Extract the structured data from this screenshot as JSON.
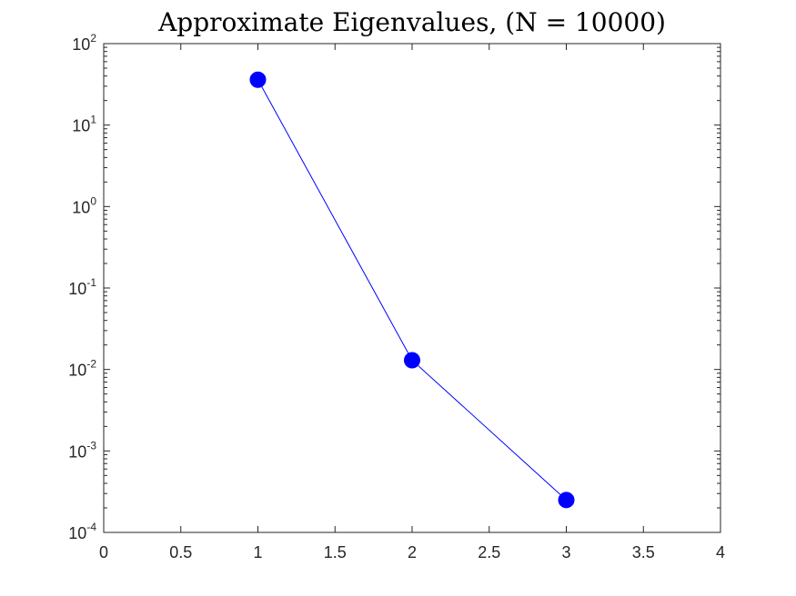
{
  "chart_data": {
    "type": "line",
    "title": "Approximate Eigenvalues, (N = 10000)",
    "xlabel": "",
    "ylabel": "",
    "x": [
      1,
      2,
      3
    ],
    "series": [
      {
        "values": [
          36,
          0.013,
          0.00025
        ],
        "color": "#0000ff",
        "marker": "filled-circle"
      }
    ],
    "xlim": [
      0,
      4
    ],
    "ylim": [
      0.0001,
      100
    ],
    "yscale": "log",
    "grid": false,
    "legend": "none",
    "x_ticks": [
      {
        "value": 0,
        "label": "0"
      },
      {
        "value": 0.5,
        "label": "0.5"
      },
      {
        "value": 1,
        "label": "1"
      },
      {
        "value": 1.5,
        "label": "1.5"
      },
      {
        "value": 2,
        "label": "2"
      },
      {
        "value": 2.5,
        "label": "2.5"
      },
      {
        "value": 3,
        "label": "3"
      },
      {
        "value": 3.5,
        "label": "3.5"
      },
      {
        "value": 4,
        "label": "4"
      }
    ],
    "y_ticks": [
      {
        "value": 0.0001,
        "base": "10",
        "exp": "-4"
      },
      {
        "value": 0.001,
        "base": "10",
        "exp": "-3"
      },
      {
        "value": 0.01,
        "base": "10",
        "exp": "-2"
      },
      {
        "value": 0.1,
        "base": "10",
        "exp": "-1"
      },
      {
        "value": 1,
        "base": "10",
        "exp": "0"
      },
      {
        "value": 10,
        "base": "10",
        "exp": "1"
      },
      {
        "value": 100,
        "base": "10",
        "exp": "2"
      }
    ]
  }
}
